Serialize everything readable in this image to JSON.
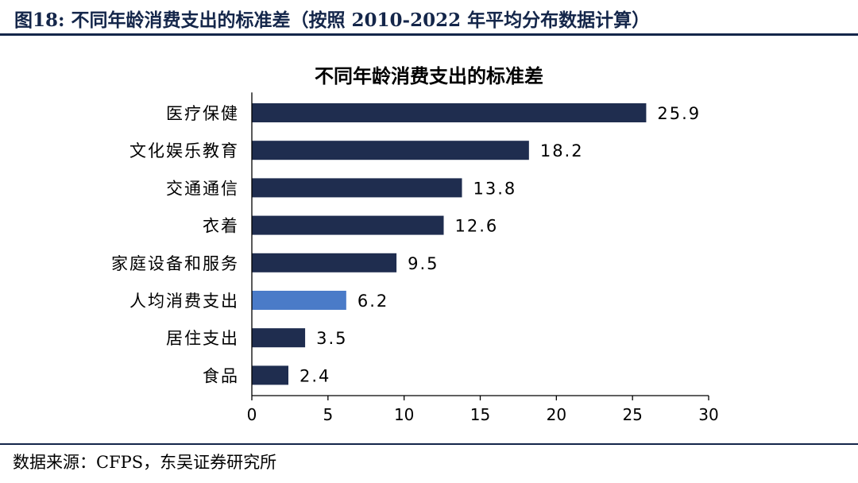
{
  "header": {
    "caption": "图18:  不同年龄消费支出的标准差（按照 2010-2022 年平均分布数据计算）"
  },
  "footer": {
    "source": "数据来源：CFPS，东吴证券研究所"
  },
  "colors": {
    "bar": "#1f2d4f",
    "highlight": "#4a7bc8",
    "rule": "#14264a"
  },
  "chart_data": {
    "type": "bar",
    "orientation": "horizontal",
    "title": "不同年龄消费支出的标准差",
    "categories": [
      "医疗保健",
      "文化娱乐教育",
      "交通通信",
      "衣着",
      "家庭设备和服务",
      "人均消费支出",
      "居住支出",
      "食品"
    ],
    "values": [
      25.9,
      18.2,
      13.8,
      12.6,
      9.5,
      6.2,
      3.5,
      2.4
    ],
    "value_labels": [
      "25.9",
      "18.2",
      "13.8",
      "12.6",
      "9.5",
      "6.2",
      "3.5",
      "2.4"
    ],
    "highlight_category": "人均消费支出",
    "xlim": [
      0,
      30
    ],
    "xticks": [
      "0",
      "5",
      "10",
      "15",
      "20",
      "25",
      "30"
    ],
    "xlabel": "",
    "ylabel": "",
    "grid": false,
    "legend": "none"
  }
}
